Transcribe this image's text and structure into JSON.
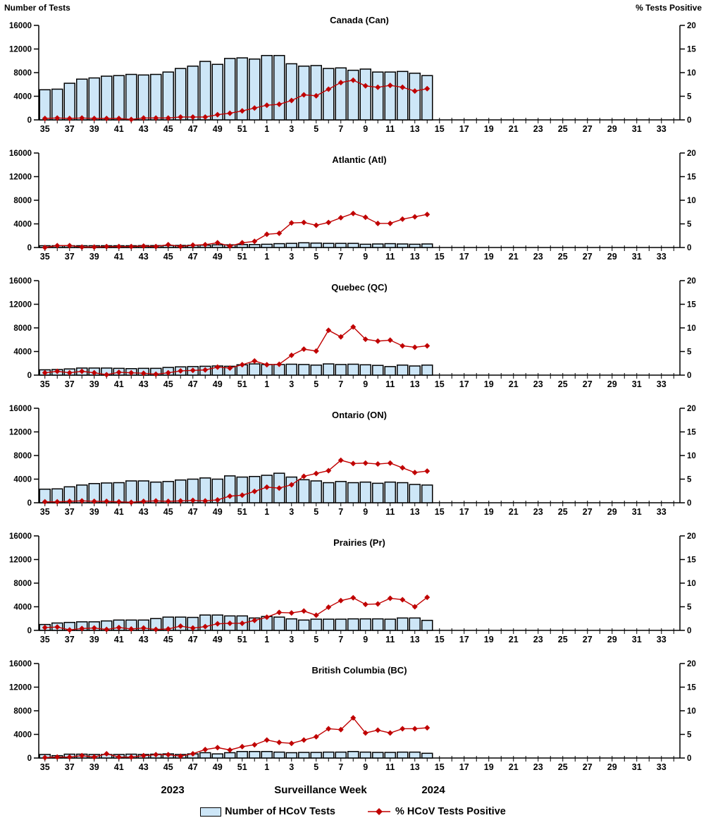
{
  "header": {
    "left_axis_title": "Number of Tests",
    "right_axis_title": "% Tests Positive"
  },
  "x_axis": {
    "title": "Surveillance Week",
    "year_left": "2023",
    "year_right": "2024",
    "weeks": [
      35,
      36,
      37,
      38,
      39,
      40,
      41,
      42,
      43,
      44,
      45,
      46,
      47,
      48,
      49,
      50,
      51,
      52,
      1,
      2,
      3,
      4,
      5,
      6,
      7,
      8,
      9,
      10,
      11,
      12,
      13,
      14,
      15,
      16,
      17,
      18,
      19,
      20,
      21,
      22,
      23,
      24,
      25,
      26,
      27,
      28,
      29,
      30,
      31,
      32,
      33,
      34
    ],
    "data_weeks": [
      35,
      36,
      37,
      38,
      39,
      40,
      41,
      42,
      43,
      44,
      45,
      46,
      47,
      48,
      49,
      50,
      51,
      52,
      1,
      2,
      3,
      4,
      5,
      6,
      7,
      8,
      9,
      10,
      11,
      12,
      13,
      14
    ]
  },
  "legend": {
    "bars_label": "Number of HCoV Tests",
    "line_label": "% HCoV Tests Positive"
  },
  "colors": {
    "bar_fill": "#CDE6F7",
    "bar_border": "#000000",
    "line": "#C00000",
    "text": "#000000"
  },
  "chart_data": [
    {
      "type": "bar",
      "title": "Canada (Can)",
      "left_ylabel": "Number of Tests",
      "right_ylabel": "% Tests Positive",
      "left_ylim": [
        0,
        16000
      ],
      "right_ylim": [
        0,
        20
      ],
      "left_yticks": [
        0,
        4000,
        8000,
        12000,
        16000
      ],
      "right_yticks": [
        0,
        5,
        10,
        15,
        20
      ],
      "series": [
        {
          "name": "Number of HCoV Tests",
          "type": "bar",
          "axis": "left",
          "values": [
            5100,
            5200,
            6200,
            6900,
            7100,
            7400,
            7500,
            7700,
            7600,
            7700,
            8100,
            8700,
            9100,
            9900,
            9400,
            10400,
            10500,
            10300,
            10900,
            10900,
            9500,
            9100,
            9200,
            8700,
            8800,
            8400,
            8600,
            8100,
            8100,
            8200,
            7900,
            7500
          ]
        },
        {
          "name": "% HCoV Tests Positive",
          "type": "line",
          "axis": "right",
          "values": [
            0.3,
            0.4,
            0.3,
            0.4,
            0.3,
            0.3,
            0.3,
            0.1,
            0.4,
            0.4,
            0.4,
            0.6,
            0.6,
            0.6,
            1.1,
            1.4,
            1.9,
            2.5,
            3.1,
            3.3,
            4.1,
            5.3,
            5.1,
            6.5,
            7.9,
            8.4,
            7.2,
            6.9,
            7.3,
            6.9,
            6.1,
            6.6
          ]
        }
      ]
    },
    {
      "type": "bar",
      "title": "Atlantic (Atl)",
      "left_ylim": [
        0,
        16000
      ],
      "right_ylim": [
        0,
        20
      ],
      "left_yticks": [
        0,
        4000,
        8000,
        12000,
        16000
      ],
      "right_yticks": [
        0,
        5,
        10,
        15,
        20
      ],
      "series": [
        {
          "name": "Number of HCoV Tests",
          "type": "bar",
          "axis": "left",
          "values": [
            300,
            300,
            300,
            300,
            300,
            300,
            300,
            300,
            320,
            320,
            350,
            350,
            380,
            400,
            450,
            450,
            500,
            500,
            550,
            650,
            700,
            800,
            750,
            700,
            700,
            700,
            550,
            600,
            650,
            600,
            550,
            600
          ]
        },
        {
          "name": "% HCoV Tests Positive",
          "type": "line",
          "axis": "right",
          "values": [
            0.0,
            0.4,
            0.4,
            0.1,
            0.1,
            0.2,
            0.2,
            0.2,
            0.3,
            0.2,
            0.6,
            0.2,
            0.5,
            0.6,
            1.0,
            0.3,
            1.0,
            1.3,
            2.8,
            3.0,
            5.2,
            5.3,
            4.7,
            5.3,
            6.3,
            7.2,
            6.4,
            5.1,
            5.1,
            6.0,
            6.5,
            7.0
          ]
        }
      ]
    },
    {
      "type": "bar",
      "title": "Quebec (QC)",
      "left_ylim": [
        0,
        16000
      ],
      "right_ylim": [
        0,
        20
      ],
      "left_yticks": [
        0,
        4000,
        8000,
        12000,
        16000
      ],
      "right_yticks": [
        0,
        5,
        10,
        15,
        20
      ],
      "series": [
        {
          "name": "Number of HCoV Tests",
          "type": "bar",
          "axis": "left",
          "values": [
            900,
            950,
            1050,
            1200,
            1200,
            1200,
            1150,
            1100,
            1150,
            1150,
            1300,
            1400,
            1450,
            1500,
            1550,
            1500,
            1750,
            1900,
            1800,
            1800,
            1850,
            1800,
            1700,
            1900,
            1800,
            1850,
            1750,
            1650,
            1450,
            1700,
            1550,
            1700
          ]
        },
        {
          "name": "% HCoV Tests Positive",
          "type": "line",
          "axis": "right",
          "values": [
            0.5,
            0.8,
            0.5,
            0.8,
            0.5,
            0.1,
            0.6,
            0.5,
            0.4,
            0.2,
            0.5,
            0.9,
            1.0,
            1.1,
            1.7,
            1.5,
            2.2,
            3.0,
            2.2,
            2.3,
            4.2,
            5.5,
            5.1,
            9.5,
            8.1,
            10.2,
            7.6,
            7.2,
            7.4,
            6.2,
            5.9,
            6.2
          ]
        }
      ]
    },
    {
      "type": "bar",
      "title": "Ontario (ON)",
      "left_ylim": [
        0,
        16000
      ],
      "right_ylim": [
        0,
        20
      ],
      "left_yticks": [
        0,
        4000,
        8000,
        12000,
        16000
      ],
      "right_yticks": [
        0,
        5,
        10,
        15,
        20
      ],
      "series": [
        {
          "name": "Number of HCoV Tests",
          "type": "bar",
          "axis": "left",
          "values": [
            2300,
            2350,
            2700,
            3000,
            3250,
            3350,
            3400,
            3700,
            3700,
            3500,
            3600,
            3850,
            4000,
            4200,
            4000,
            4550,
            4350,
            4450,
            4650,
            5000,
            4350,
            3900,
            3700,
            3400,
            3600,
            3400,
            3500,
            3300,
            3500,
            3400,
            3100,
            3000
          ]
        },
        {
          "name": "% HCoV Tests Positive",
          "type": "line",
          "axis": "right",
          "values": [
            0.2,
            0.2,
            0.3,
            0.4,
            0.3,
            0.3,
            0.2,
            0.1,
            0.3,
            0.4,
            0.3,
            0.4,
            0.5,
            0.4,
            0.6,
            1.4,
            1.6,
            2.4,
            3.3,
            3.1,
            3.8,
            5.6,
            6.2,
            6.8,
            9.0,
            8.3,
            8.4,
            8.2,
            8.4,
            7.4,
            6.4,
            6.7
          ]
        }
      ]
    },
    {
      "type": "bar",
      "title": "Prairies (Pr)",
      "left_ylim": [
        0,
        16000
      ],
      "right_ylim": [
        0,
        20
      ],
      "left_yticks": [
        0,
        4000,
        8000,
        12000,
        16000
      ],
      "right_yticks": [
        0,
        5,
        10,
        15,
        20
      ],
      "series": [
        {
          "name": "Number of HCoV Tests",
          "type": "bar",
          "axis": "left",
          "values": [
            1000,
            1250,
            1350,
            1450,
            1450,
            1600,
            1750,
            1750,
            1750,
            2000,
            2250,
            2250,
            2200,
            2600,
            2600,
            2450,
            2450,
            2100,
            2350,
            2250,
            1950,
            1750,
            1900,
            1900,
            1900,
            1950,
            1950,
            1950,
            1900,
            2100,
            2100,
            1700
          ]
        },
        {
          "name": "% HCoV Tests Positive",
          "type": "line",
          "axis": "right",
          "values": [
            0.6,
            0.7,
            0.1,
            0.4,
            0.5,
            0.2,
            0.6,
            0.3,
            0.5,
            0.2,
            0.3,
            0.9,
            0.5,
            0.8,
            1.4,
            1.5,
            1.5,
            2.1,
            2.8,
            3.8,
            3.7,
            4.1,
            3.2,
            4.9,
            6.3,
            6.9,
            5.5,
            5.6,
            6.8,
            6.5,
            5.0,
            7.0
          ]
        }
      ]
    },
    {
      "type": "bar",
      "title": "British Columbia (BC)",
      "left_ylim": [
        0,
        16000
      ],
      "right_ylim": [
        0,
        20
      ],
      "left_yticks": [
        0,
        4000,
        8000,
        12000,
        16000
      ],
      "right_yticks": [
        0,
        5,
        10,
        15,
        20
      ],
      "series": [
        {
          "name": "Number of HCoV Tests",
          "type": "bar",
          "axis": "left",
          "values": [
            600,
            400,
            650,
            650,
            600,
            600,
            600,
            650,
            600,
            650,
            700,
            600,
            700,
            900,
            700,
            900,
            1100,
            1100,
            1100,
            1000,
            900,
            950,
            950,
            1000,
            1000,
            1100,
            1000,
            950,
            950,
            1000,
            1000,
            800
          ]
        },
        {
          "name": "% HCoV Tests Positive",
          "type": "line",
          "axis": "right",
          "values": [
            0.1,
            0.2,
            0.2,
            0.5,
            0.2,
            0.9,
            0.2,
            0.2,
            0.5,
            0.7,
            0.7,
            0.4,
            0.9,
            1.8,
            2.2,
            1.7,
            2.4,
            2.8,
            3.8,
            3.3,
            3.1,
            3.8,
            4.5,
            6.2,
            6.0,
            8.5,
            5.3,
            5.9,
            5.3,
            6.2,
            6.2,
            6.4
          ]
        }
      ]
    }
  ]
}
